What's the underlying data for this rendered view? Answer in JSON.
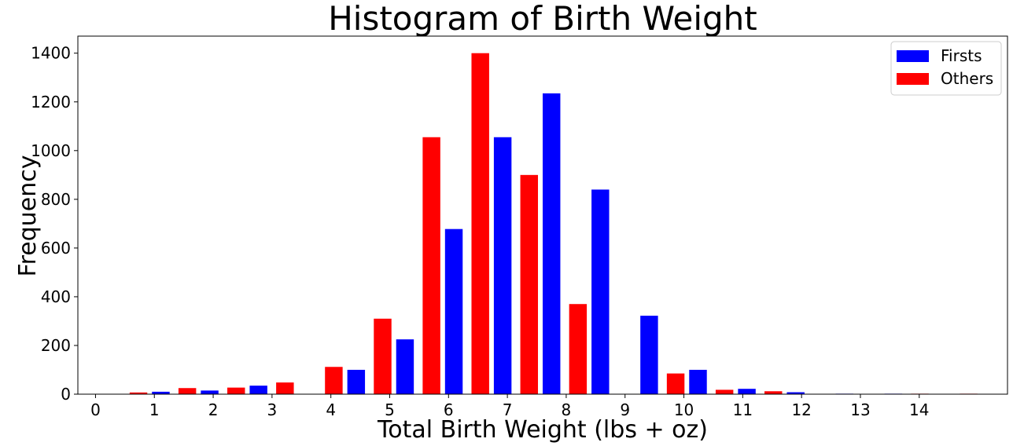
{
  "chart_data": {
    "type": "bar",
    "title": "Histogram of Birth Weight",
    "xlabel": "Total Birth Weight (lbs + oz)",
    "ylabel": "Frequency",
    "xlim": [
      -0.3,
      15.5
    ],
    "ylim": [
      0,
      1470
    ],
    "xticks": [
      0,
      1,
      2,
      3,
      4,
      5,
      6,
      7,
      8,
      9,
      10,
      11,
      12,
      13,
      14
    ],
    "yticks": [
      0,
      200,
      400,
      600,
      800,
      1000,
      1200,
      1400
    ],
    "bar_width": 0.3,
    "grid": false,
    "legend_position": "top-right",
    "series": [
      {
        "name": "Firsts",
        "color": "#0000ff",
        "x": [
          0.96,
          1.79,
          2.62,
          3.45,
          4.28,
          5.11,
          5.94,
          6.77,
          7.6,
          8.43,
          9.26,
          10.09,
          10.92,
          11.75,
          12.58,
          13.41
        ],
        "values": [
          10,
          15,
          35,
          0,
          100,
          225,
          678,
          1055,
          1235,
          840,
          322,
          100,
          22,
          8,
          2,
          2
        ]
      },
      {
        "name": "Others",
        "color": "#ff0000",
        "x": [
          0.58,
          1.41,
          2.24,
          3.07,
          3.9,
          4.73,
          5.56,
          6.39,
          7.22,
          8.05,
          8.88,
          9.71,
          10.54,
          11.37,
          12.2,
          13.03,
          13.86,
          14.69
        ],
        "values": [
          7,
          25,
          27,
          48,
          112,
          310,
          1055,
          1400,
          900,
          370,
          0,
          85,
          18,
          12,
          0,
          0,
          2,
          2
        ]
      }
    ]
  }
}
